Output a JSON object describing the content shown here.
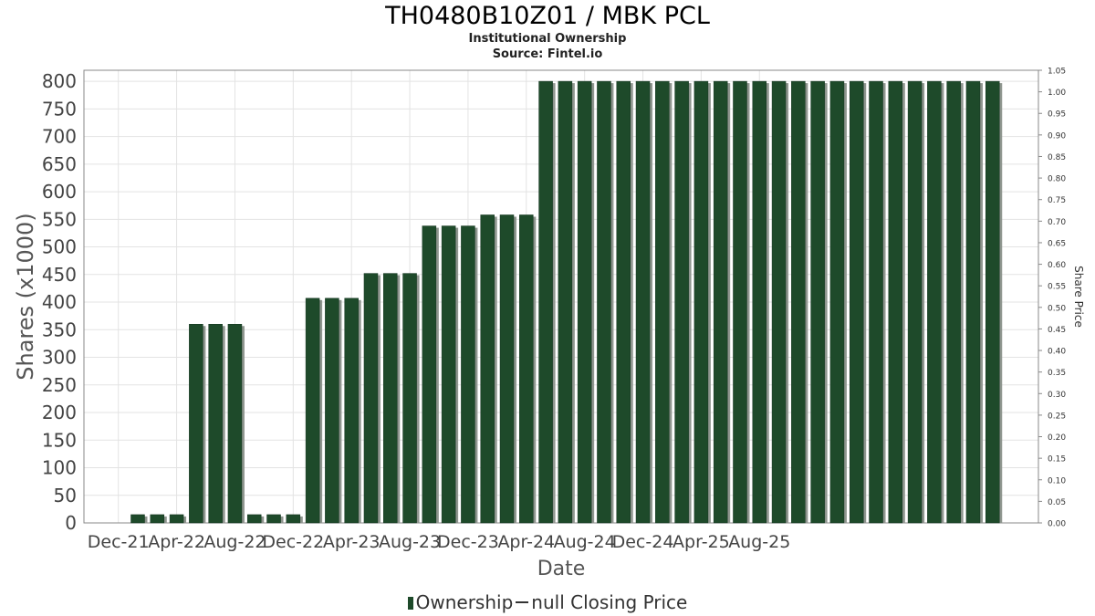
{
  "header": {
    "title": "TH0480B10Z01 / MBK PCL",
    "subtitle": "Institutional Ownership",
    "source": "Source: Fintel.io"
  },
  "legend": {
    "ownership_label": "Ownership",
    "price_label": "null Closing Price"
  },
  "colors": {
    "bar": "#1e4a2a",
    "bar_shadow": "#8f968f",
    "grid": "#e3e3e3",
    "axis": "#888888"
  },
  "chart_data": {
    "type": "bar",
    "title": "TH0480B10Z01 / MBK PCL",
    "xlabel": "Date",
    "ylabel": "Shares (x1000)",
    "y2label": "Share Price",
    "ylim": [
      0,
      820
    ],
    "y2lim": [
      0,
      1.05
    ],
    "yticks": [
      0,
      50,
      100,
      150,
      200,
      250,
      300,
      350,
      400,
      450,
      500,
      550,
      600,
      650,
      700,
      750,
      800
    ],
    "y2ticks": [
      "0.00",
      "0.05",
      "0.10",
      "0.15",
      "0.20",
      "0.25",
      "0.30",
      "0.35",
      "0.40",
      "0.45",
      "0.50",
      "0.55",
      "0.60",
      "0.65",
      "0.70",
      "0.75",
      "0.80",
      "0.85",
      "0.90",
      "0.95",
      "1.00",
      "1.05"
    ],
    "xticks": [
      "Dec-21",
      "Apr-22",
      "Aug-22",
      "Dec-22",
      "Apr-23",
      "Aug-23",
      "Dec-23",
      "Apr-24",
      "Aug-24",
      "Dec-24",
      "Apr-25",
      "Aug-25"
    ],
    "grid": true,
    "legend_position": "bottom-center",
    "series": [
      {
        "name": "Ownership",
        "values": [
          15,
          15,
          15,
          360,
          360,
          360,
          15,
          15,
          15,
          407,
          407,
          407,
          452,
          452,
          452,
          538,
          538,
          538,
          558,
          558,
          558,
          800,
          800,
          800,
          800,
          800,
          800,
          800,
          800,
          800,
          800,
          800,
          800,
          800,
          800,
          800,
          800,
          800,
          800,
          800,
          800,
          800,
          800,
          800,
          800
        ]
      }
    ]
  }
}
